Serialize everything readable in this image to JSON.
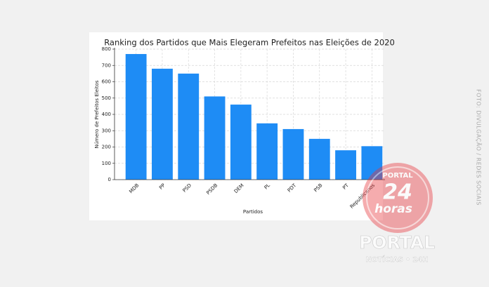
{
  "chart_data": {
    "type": "bar",
    "title": "Ranking dos Partidos que Mais Elegeram Prefeitos nas Eleições de 2020",
    "x_label": "Partidos",
    "y_label": "Número de Prefeitos Eleitos",
    "categories": [
      "MDB",
      "PP",
      "PSD",
      "PSDB",
      "DEM",
      "PL",
      "PDT",
      "PSB",
      "PT",
      "Republicanos"
    ],
    "values": [
      770,
      680,
      650,
      510,
      460,
      345,
      310,
      250,
      180,
      205
    ],
    "color": "#1e8cf5",
    "ylim": [
      0,
      800
    ],
    "yticks": [
      0,
      100,
      200,
      300,
      400,
      500,
      600,
      700,
      800
    ],
    "grid": true
  },
  "credit": "FOTO: DIVULGAÇÃO / REDES SOCIAIS",
  "watermark": {
    "logo_top": "PORTAL",
    "logo_number": "24",
    "logo_word": "horas",
    "brand": "PORTAL",
    "tagline": "NOTÍCIAS • 24H"
  }
}
